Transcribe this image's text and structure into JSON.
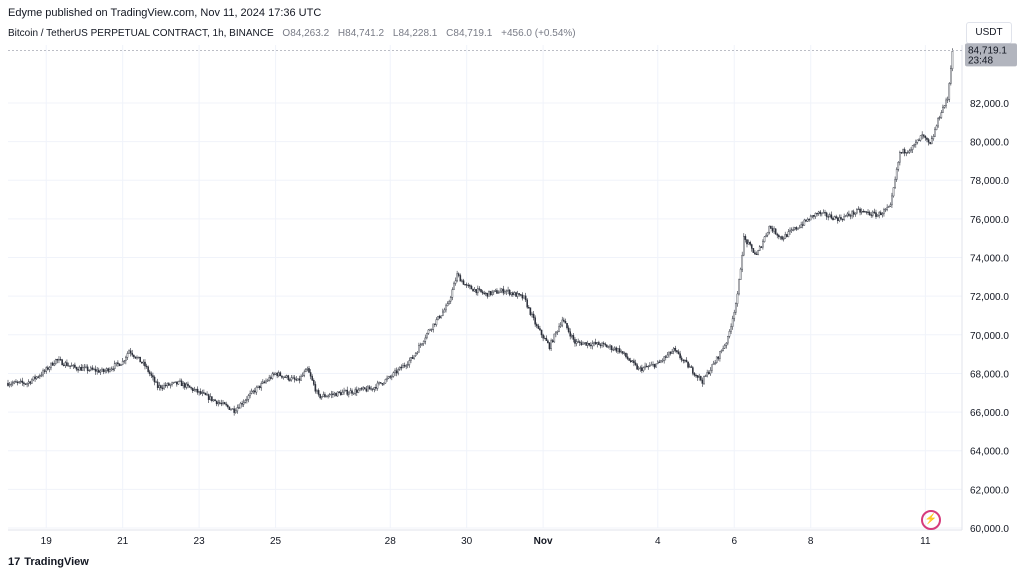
{
  "header": {
    "published": "Edyme published on TradingView.com, Nov 11, 2024 17:36 UTC",
    "symbol": "Bitcoin / TetherUS PERPETUAL CONTRACT, 1h, BINANCE",
    "o_label": "O",
    "o_value": "84,263.2",
    "h_label": "H",
    "h_value": "84,741.2",
    "l_label": "L",
    "l_value": "84,228.1",
    "c_label": "C",
    "c_value": "84,719.1",
    "change": "+456.0 (+0.54%)"
  },
  "currency_button": "USDT",
  "price_badge": {
    "price": "84,719.1",
    "countdown": "23:48"
  },
  "footer": {
    "brand": "TradingView",
    "logo_text": "17"
  },
  "colors": {
    "up": "#ffffff",
    "down": "#2a2e39",
    "grid": "#f0f3fa",
    "badge": "#b2b5be",
    "accent": "#d63b7c"
  },
  "chart_data": {
    "type": "candlestick",
    "title": "",
    "xlabel": "",
    "ylabel": "",
    "ylim": [
      60000,
      85000
    ],
    "y_ticks": [
      "82,000.0",
      "80,000.0",
      "78,000.0",
      "76,000.0",
      "74,000.0",
      "72,000.0",
      "70,000.0",
      "68,000.0",
      "66,000.0",
      "64,000.0",
      "62,000.0",
      "60,000.0"
    ],
    "x_ticks": [
      "19",
      "21",
      "23",
      "25",
      "28",
      "30",
      "Nov",
      "4",
      "6",
      "8",
      "11"
    ],
    "grid": true,
    "last_price": 84719.1,
    "close_path": [
      {
        "x": "Oct 18 12:00",
        "y": 67500
      },
      {
        "x": "Oct 18 23:00",
        "y": 68100
      },
      {
        "x": "Oct 19 06:00",
        "y": 68700
      },
      {
        "x": "Oct 19 18:00",
        "y": 68300
      },
      {
        "x": "Oct 20 12:00",
        "y": 68100
      },
      {
        "x": "Oct 21 00:00",
        "y": 68600
      },
      {
        "x": "Oct 21 04:00",
        "y": 69200
      },
      {
        "x": "Oct 21 14:00",
        "y": 68400
      },
      {
        "x": "Oct 21 22:00",
        "y": 67300
      },
      {
        "x": "Oct 22 12:00",
        "y": 67500
      },
      {
        "x": "Oct 23 00:00",
        "y": 67000
      },
      {
        "x": "Oct 23 12:00",
        "y": 66500
      },
      {
        "x": "Oct 23 22:00",
        "y": 66100
      },
      {
        "x": "Oct 24 12:00",
        "y": 67200
      },
      {
        "x": "Oct 25 00:00",
        "y": 68000
      },
      {
        "x": "Oct 25 14:00",
        "y": 67600
      },
      {
        "x": "Oct 25 20:00",
        "y": 68200
      },
      {
        "x": "Oct 26 03:00",
        "y": 66800
      },
      {
        "x": "Oct 26 18:00",
        "y": 67000
      },
      {
        "x": "Oct 27 12:00",
        "y": 67200
      },
      {
        "x": "Oct 28 00:00",
        "y": 67800
      },
      {
        "x": "Oct 28 14:00",
        "y": 68800
      },
      {
        "x": "Oct 29 00:00",
        "y": 70200
      },
      {
        "x": "Oct 29 12:00",
        "y": 71500
      },
      {
        "x": "Oct 29 18:00",
        "y": 73100
      },
      {
        "x": "Oct 30 00:00",
        "y": 72500
      },
      {
        "x": "Oct 30 12:00",
        "y": 72100
      },
      {
        "x": "Oct 31 00:00",
        "y": 72300
      },
      {
        "x": "Oct 31 12:00",
        "y": 71900
      },
      {
        "x": "Oct 31 20:00",
        "y": 70400
      },
      {
        "x": "Nov 1 04:00",
        "y": 69400
      },
      {
        "x": "Nov 1 12:00",
        "y": 70800
      },
      {
        "x": "Nov 1 20:00",
        "y": 69600
      },
      {
        "x": "Nov 2 12:00",
        "y": 69500
      },
      {
        "x": "Nov 3 00:00",
        "y": 69200
      },
      {
        "x": "Nov 3 12:00",
        "y": 68200
      },
      {
        "x": "Nov 4 00:00",
        "y": 68500
      },
      {
        "x": "Nov 4 10:00",
        "y": 69200
      },
      {
        "x": "Nov 4 20:00",
        "y": 68300
      },
      {
        "x": "Nov 5 04:00",
        "y": 67600
      },
      {
        "x": "Nov 5 12:00",
        "y": 68600
      },
      {
        "x": "Nov 5 20:00",
        "y": 69800
      },
      {
        "x": "Nov 6 02:00",
        "y": 72000
      },
      {
        "x": "Nov 6 06:00",
        "y": 75000
      },
      {
        "x": "Nov 6 14:00",
        "y": 74100
      },
      {
        "x": "Nov 6 22:00",
        "y": 75600
      },
      {
        "x": "Nov 7 06:00",
        "y": 75000
      },
      {
        "x": "Nov 7 18:00",
        "y": 75700
      },
      {
        "x": "Nov 8 04:00",
        "y": 76300
      },
      {
        "x": "Nov 8 18:00",
        "y": 76000
      },
      {
        "x": "Nov 9 06:00",
        "y": 76400
      },
      {
        "x": "Nov 9 18:00",
        "y": 76200
      },
      {
        "x": "Nov 10 02:00",
        "y": 76600
      },
      {
        "x": "Nov 10 08:00",
        "y": 79400
      },
      {
        "x": "Nov 10 16:00",
        "y": 79700
      },
      {
        "x": "Nov 10 22:00",
        "y": 80300
      },
      {
        "x": "Nov 11 03:00",
        "y": 79800
      },
      {
        "x": "Nov 11 10:00",
        "y": 81600
      },
      {
        "x": "Nov 11 14:00",
        "y": 82200
      },
      {
        "x": "Nov 11 17:00",
        "y": 84719
      }
    ]
  }
}
